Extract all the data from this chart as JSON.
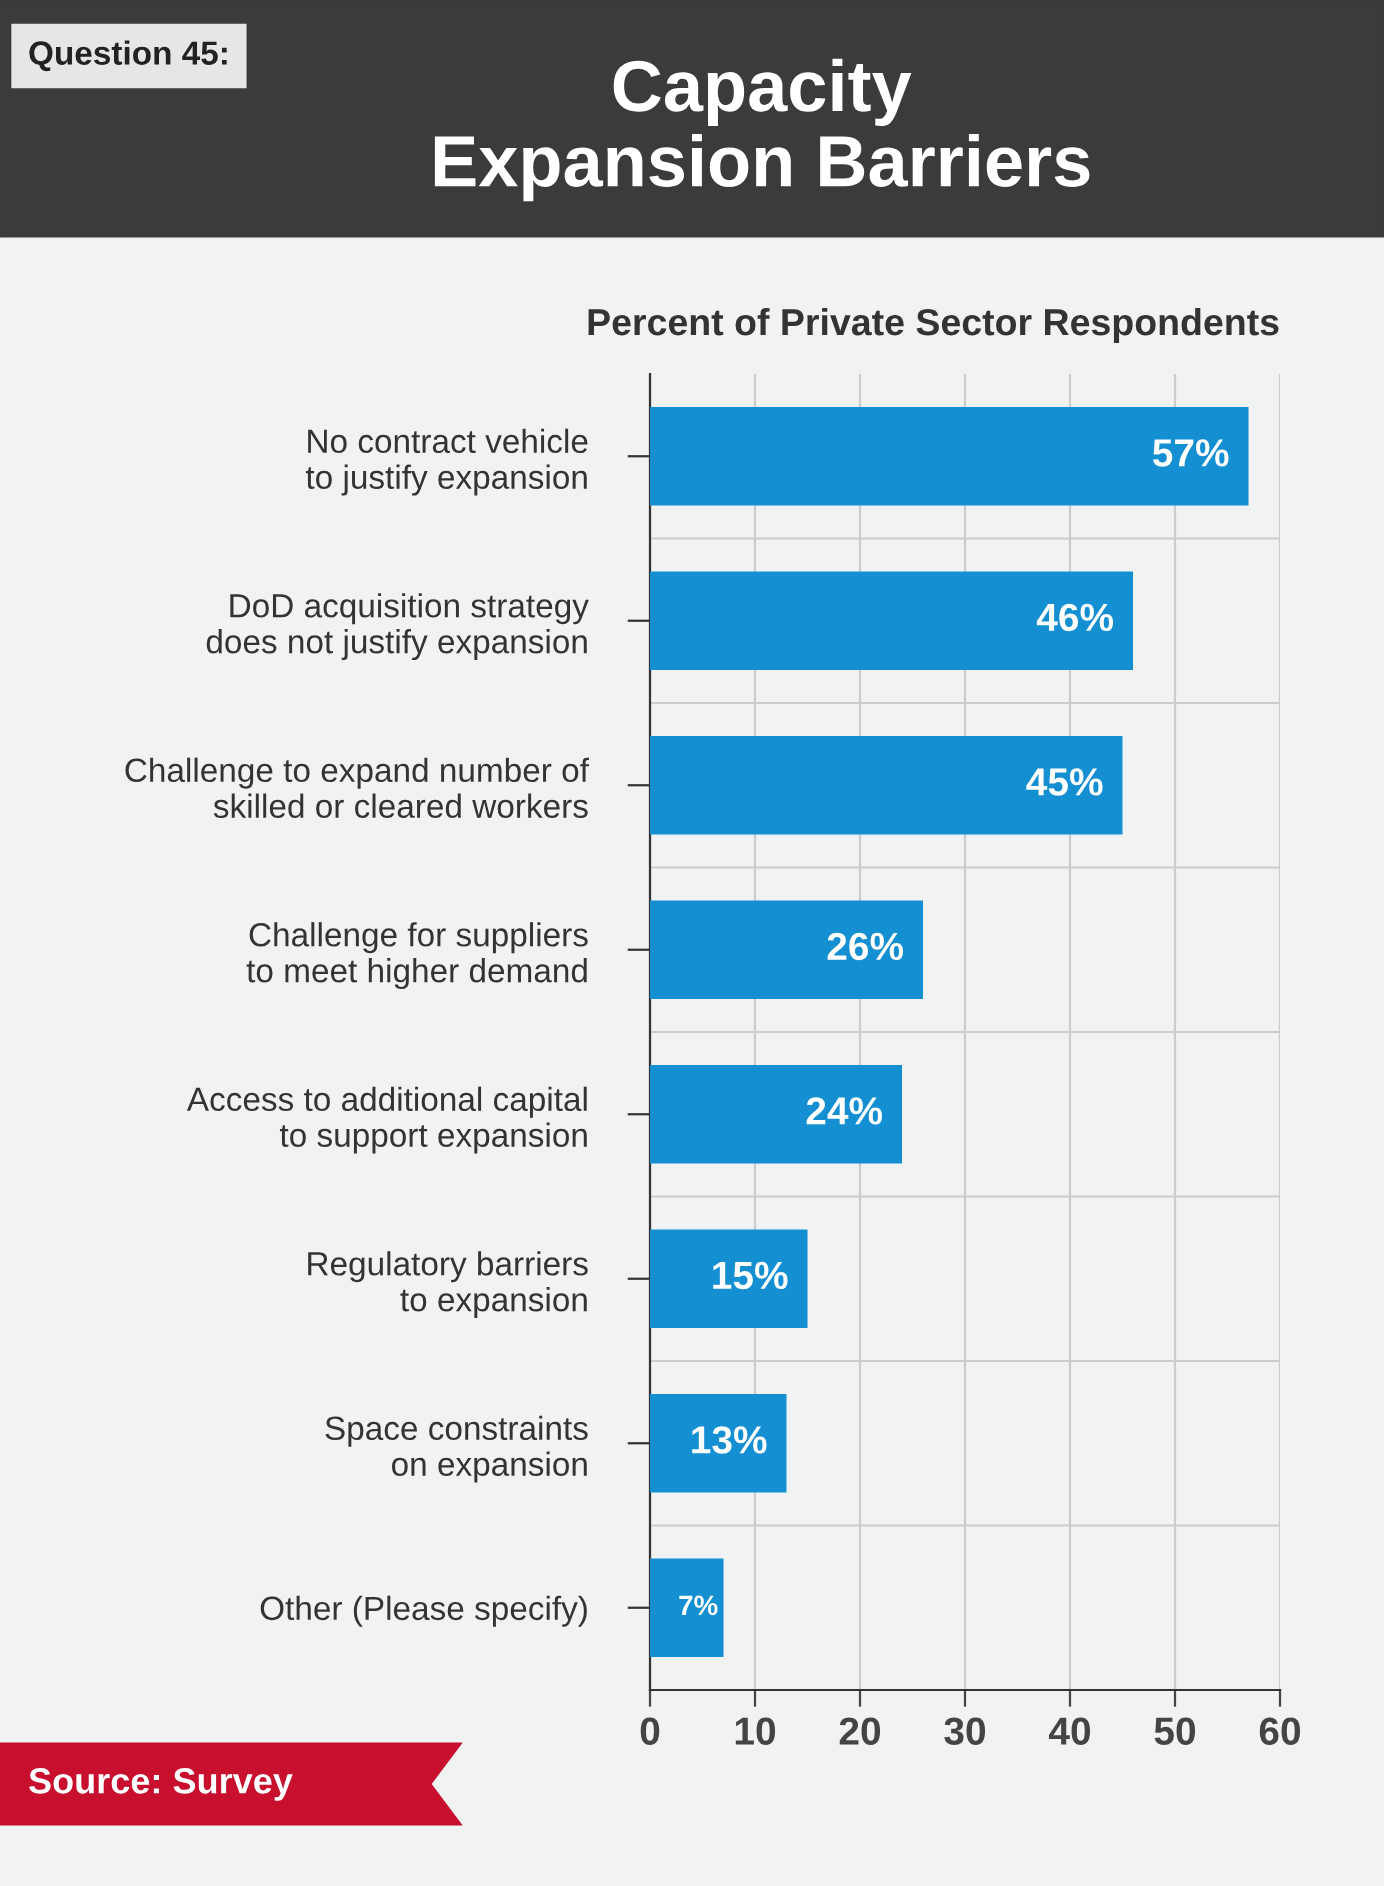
{
  "chart_data": {
    "type": "bar",
    "orientation": "horizontal",
    "title": "Capacity\nExpansion Barriers",
    "subtitle": "Percent of Private Sector Respondents",
    "annotations": [
      "Question 45:",
      "Source: Survey"
    ],
    "categories": [
      "No contract vehicle\nto justify expansion",
      "DoD acquisition strategy\ndoes not justify expansion",
      "Challenge to expand number of\nskilled or cleared workers",
      "Challenge for suppliers\nto meet higher demand",
      "Access to additional capital\nto support expansion",
      "Regulatory barriers\nto expansion",
      "Space constraints\non expansion",
      "Other (Please specify)"
    ],
    "values": [
      57,
      46,
      45,
      26,
      24,
      15,
      13,
      7
    ],
    "value_labels": [
      "57%",
      "46%",
      "45%",
      "26%",
      "24%",
      "15%",
      "13%",
      "7%"
    ],
    "color": "#138fd2",
    "xlim": [
      0,
      60
    ],
    "xticks": [
      0,
      10,
      20,
      30,
      40,
      50,
      60
    ],
    "grid": true
  }
}
